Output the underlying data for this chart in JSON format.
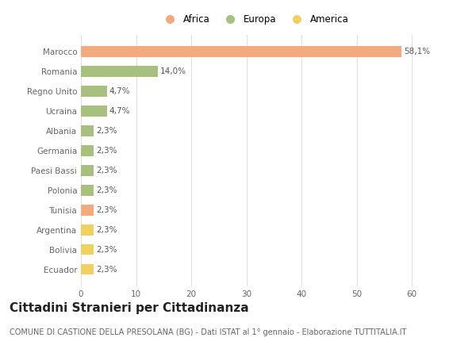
{
  "categories": [
    "Marocco",
    "Romania",
    "Regno Unito",
    "Ucraina",
    "Albania",
    "Germania",
    "Paesi Bassi",
    "Polonia",
    "Tunisia",
    "Argentina",
    "Bolivia",
    "Ecuador"
  ],
  "values": [
    58.1,
    14.0,
    4.7,
    4.7,
    2.3,
    2.3,
    2.3,
    2.3,
    2.3,
    2.3,
    2.3,
    2.3
  ],
  "labels": [
    "58,1%",
    "14,0%",
    "4,7%",
    "4,7%",
    "2,3%",
    "2,3%",
    "2,3%",
    "2,3%",
    "2,3%",
    "2,3%",
    "2,3%",
    "2,3%"
  ],
  "colors": [
    "#F2AA7E",
    "#A8C07E",
    "#A8C07E",
    "#A8C07E",
    "#A8C07E",
    "#A8C07E",
    "#A8C07E",
    "#A8C07E",
    "#F2AA7E",
    "#F0D060",
    "#F0D060",
    "#F0D060"
  ],
  "legend": [
    {
      "label": "Africa",
      "color": "#F2AA7E"
    },
    {
      "label": "Europa",
      "color": "#A8C07E"
    },
    {
      "label": "America",
      "color": "#F0D060"
    }
  ],
  "xlim": [
    0,
    63
  ],
  "xticks": [
    0,
    10,
    20,
    30,
    40,
    50,
    60
  ],
  "title": "Cittadini Stranieri per Cittadinanza",
  "subtitle": "COMUNE DI CASTIONE DELLA PRESOLANA (BG) - Dati ISTAT al 1° gennaio - Elaborazione TUTTITALIA.IT",
  "background_color": "#ffffff",
  "grid_color": "#e0e0e0",
  "bar_height": 0.55,
  "title_fontsize": 11,
  "subtitle_fontsize": 7,
  "label_fontsize": 7.5,
  "tick_fontsize": 7.5,
  "legend_fontsize": 8.5
}
